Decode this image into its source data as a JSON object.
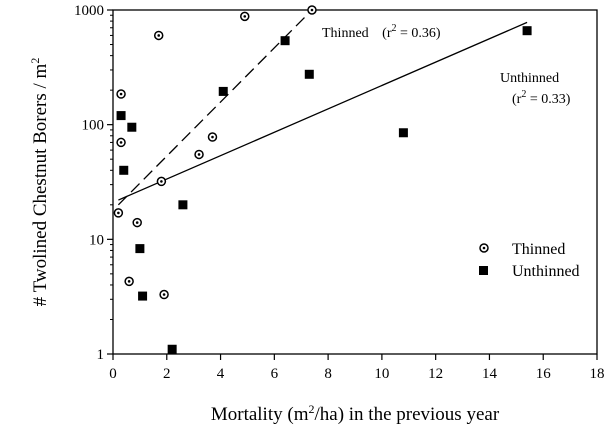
{
  "chart_data": {
    "type": "scatter",
    "xlabel": {
      "pre": "Mortality (m",
      "sup": "2",
      "post": "/ha) in the previous year"
    },
    "ylabel": {
      "pre": "# Twolined Chestnut Borers / m",
      "sup": "2"
    },
    "xlim": [
      0,
      18
    ],
    "ylim": [
      1,
      1000
    ],
    "yscale": "log",
    "grid": false,
    "legend_position": "right-middle",
    "x_ticks": [
      0,
      2,
      4,
      6,
      8,
      10,
      12,
      14,
      16,
      18
    ],
    "y_ticks": [
      1,
      10,
      100,
      1000
    ],
    "series": [
      {
        "name": "Thinned",
        "marker": "circle-dot",
        "points": [
          {
            "x": 0.2,
            "y": 17
          },
          {
            "x": 0.3,
            "y": 185
          },
          {
            "x": 0.3,
            "y": 70
          },
          {
            "x": 0.6,
            "y": 4.3
          },
          {
            "x": 0.9,
            "y": 14
          },
          {
            "x": 1.7,
            "y": 600
          },
          {
            "x": 1.8,
            "y": 32
          },
          {
            "x": 1.9,
            "y": 3.3
          },
          {
            "x": 3.2,
            "y": 55
          },
          {
            "x": 3.7,
            "y": 78
          },
          {
            "x": 4.9,
            "y": 880
          },
          {
            "x": 7.4,
            "y": 1000
          }
        ],
        "fit": {
          "x": [
            0.2,
            7.4
          ],
          "y": [
            20,
            1000
          ],
          "style": "dashed"
        }
      },
      {
        "name": "Unthinned",
        "marker": "square",
        "points": [
          {
            "x": 0.3,
            "y": 120
          },
          {
            "x": 0.4,
            "y": 40
          },
          {
            "x": 0.7,
            "y": 95
          },
          {
            "x": 1.0,
            "y": 8.3
          },
          {
            "x": 1.1,
            "y": 3.2
          },
          {
            "x": 2.2,
            "y": 1.1
          },
          {
            "x": 2.6,
            "y": 20
          },
          {
            "x": 4.1,
            "y": 195
          },
          {
            "x": 6.4,
            "y": 540
          },
          {
            "x": 7.3,
            "y": 275
          },
          {
            "x": 10.8,
            "y": 85
          },
          {
            "x": 15.4,
            "y": 660
          }
        ],
        "fit": {
          "x": [
            0.2,
            15.4
          ],
          "y": [
            22,
            780
          ],
          "style": "solid"
        }
      }
    ],
    "annotations": [
      {
        "series": "Thinned",
        "name": "Thinned",
        "r2_pre": "(r",
        "r2_sup": "2",
        "r2_post": " = 0.36)"
      },
      {
        "series": "Unthinned",
        "name": "Unthinned",
        "r2_pre": "(r",
        "r2_sup": "2",
        "r2_post": " = 0.33)"
      }
    ],
    "legend": [
      {
        "label": "Thinned",
        "marker": "circle-dot"
      },
      {
        "label": "Unthinned",
        "marker": "square"
      }
    ]
  }
}
